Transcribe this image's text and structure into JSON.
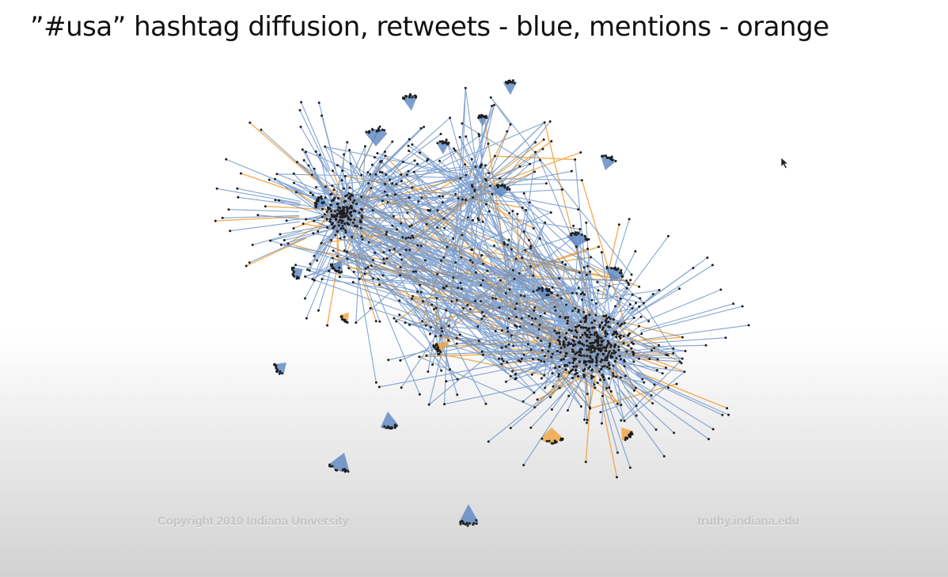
{
  "slide": {
    "title": "”#usa” hashtag diffusion, retweets - blue, mentions - orange"
  },
  "figure": {
    "copyright": "Copyright 2010 Indiana University",
    "site": "truthy.indiana.edu",
    "colors": {
      "retweet": "#5b86c2",
      "mention": "#f0a23a",
      "node": "#1f1f1f"
    }
  },
  "icons": {
    "cursor": "mouse-pointer-icon"
  }
}
